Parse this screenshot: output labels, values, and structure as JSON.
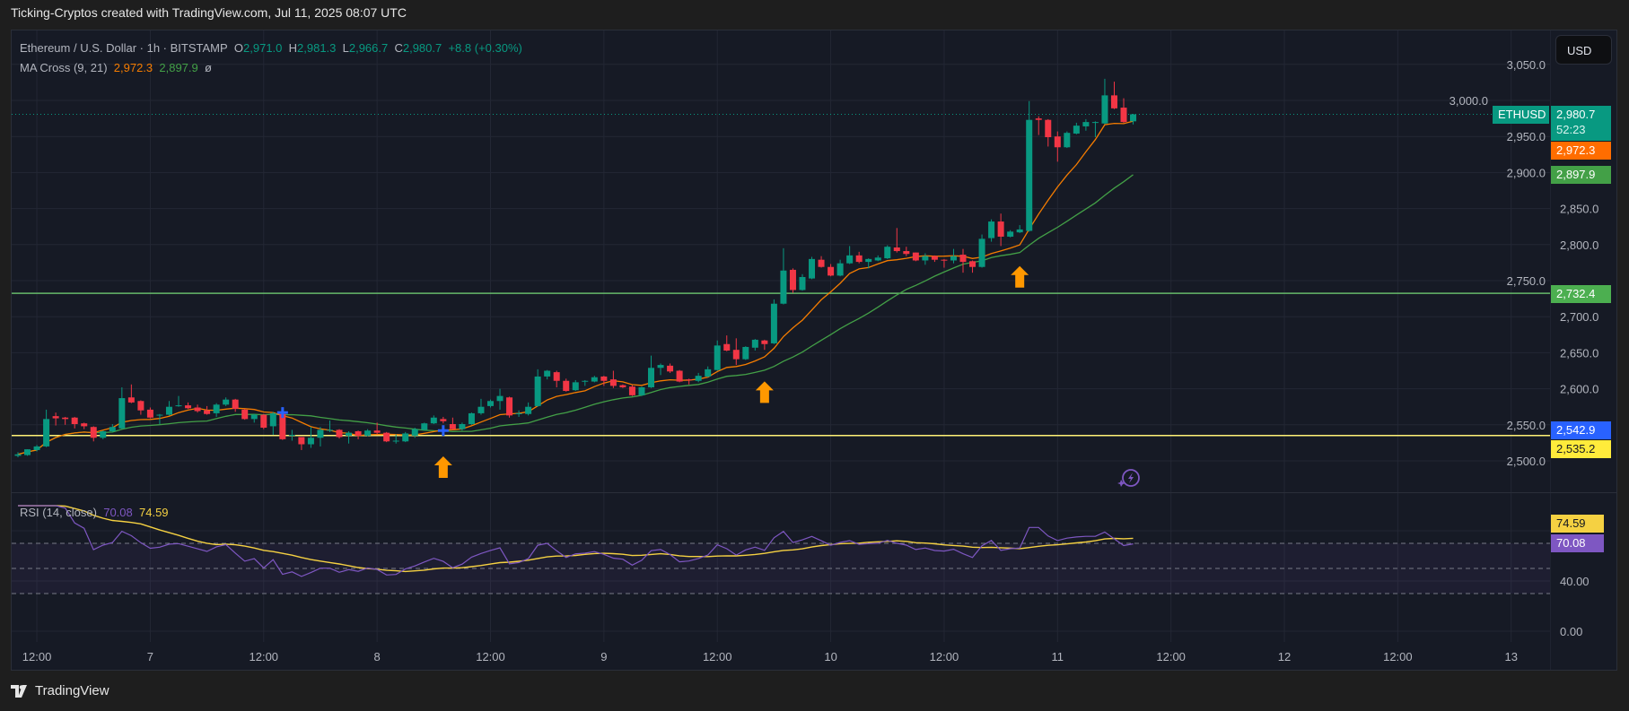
{
  "caption": "Ticking-Cryptos created with TradingView.com, Jul 11, 2025 08:07 UTC",
  "legend": {
    "symbol": "Ethereum / U.S. Dollar · 1h · BITSTAMP",
    "o_label": "O",
    "o": "2,971.0",
    "h_label": "H",
    "h": "2,981.3",
    "l_label": "L",
    "l": "2,966.7",
    "c_label": "C",
    "c": "2,980.7",
    "change": "+8.8 (+0.30%)",
    "ma_name": "MA Cross (9, 21)",
    "ma_fast": "2,972.3",
    "ma_slow": "2,897.9",
    "ma_extra": "ø",
    "rsi_name": "RSI (14, close)",
    "rsi_value": "70.08",
    "rsi_ma": "74.59"
  },
  "currency_button": "USD",
  "price_tags": {
    "symbol_tag": "ETHUSD",
    "last_price": "2,980.7",
    "countdown": "52:23",
    "ma_fast": "2,972.3",
    "ma_slow": "2,897.9",
    "resistance": "2,732.4",
    "blue_level": "2,542.9",
    "support": "2,535.2",
    "rsi_ma": "74.59",
    "rsi": "70.08"
  },
  "colors": {
    "up": "#089981",
    "down": "#f23645",
    "ma_fast": "#f57c00",
    "ma_slow": "#43a047",
    "rsi": "#7e57c2",
    "rsi_ma": "#f5d142",
    "resistance_line": "#66bb6a",
    "support_line": "#fff176",
    "marker_blue": "#2962ff",
    "arrow": "#ff9800",
    "background": "#161a25",
    "grid": "#232734"
  },
  "logo_text": "TradingView",
  "chart_data": {
    "type": "candlestick",
    "symbol": "ETHUSD",
    "interval": "1h",
    "price_axis": {
      "ticks": [
        2500,
        2550,
        2600,
        2650,
        2700,
        2750,
        2800,
        2850,
        2900,
        2950,
        3000,
        3050
      ],
      "range": [
        2480,
        3100
      ]
    },
    "rsi_axis": {
      "ticks": [
        "40.00",
        "0.00"
      ],
      "bands": [
        70,
        50,
        30
      ],
      "range": [
        0,
        100
      ]
    },
    "time_axis": [
      {
        "label": "12:00",
        "time": "2025-07-06T12:00"
      },
      {
        "label": "7",
        "time": "2025-07-07T00:00"
      },
      {
        "label": "12:00",
        "time": "2025-07-07T12:00"
      },
      {
        "label": "8",
        "time": "2025-07-08T00:00"
      },
      {
        "label": "12:00",
        "time": "2025-07-08T12:00"
      },
      {
        "label": "9",
        "time": "2025-07-09T00:00"
      },
      {
        "label": "12:00",
        "time": "2025-07-09T12:00"
      },
      {
        "label": "10",
        "time": "2025-07-10T00:00"
      },
      {
        "label": "12:00",
        "time": "2025-07-10T12:00"
      },
      {
        "label": "11",
        "time": "2025-07-11T00:00"
      },
      {
        "label": "12:00",
        "time": "2025-07-11T12:00"
      },
      {
        "label": "12",
        "time": "2025-07-12T00:00"
      },
      {
        "label": "12:00",
        "time": "2025-07-12T12:00"
      },
      {
        "label": "13",
        "time": "2025-07-13T00:00"
      }
    ],
    "horizontal_lines": [
      {
        "price": 2732.4,
        "color": "#66bb6a"
      },
      {
        "price": 2535.2,
        "color": "#fff176"
      }
    ],
    "last_price": 2980.7,
    "markers": [
      {
        "type": "cross",
        "time": "2025-07-07T14:00",
        "price": 2567,
        "color": "#2962ff"
      },
      {
        "type": "cross",
        "time": "2025-07-08T07:00",
        "price": 2542,
        "color": "#2962ff"
      },
      {
        "type": "arrow-up",
        "time": "2025-07-08T07:00",
        "price": 2490,
        "color": "#ff9800"
      },
      {
        "type": "arrow-up",
        "time": "2025-07-09T17:00",
        "price": 2594,
        "color": "#ff9800"
      },
      {
        "type": "arrow-up",
        "time": "2025-07-10T20:00",
        "price": 2754,
        "color": "#ff9800"
      }
    ],
    "candles_columns": [
      "time",
      "open",
      "high",
      "low",
      "close"
    ],
    "candles": [
      [
        "2025-07-06T10:00",
        2507,
        2512,
        2505,
        2509
      ],
      [
        "2025-07-06T11:00",
        2508,
        2516,
        2507,
        2516
      ],
      [
        "2025-07-06T12:00",
        2515,
        2522,
        2513,
        2520
      ],
      [
        "2025-07-06T13:00",
        2520,
        2571,
        2519,
        2558
      ],
      [
        "2025-07-06T14:00",
        2562,
        2567,
        2549,
        2559
      ],
      [
        "2025-07-06T15:00",
        2560,
        2561,
        2550,
        2558
      ],
      [
        "2025-07-06T16:00",
        2560,
        2561,
        2545,
        2551
      ],
      [
        "2025-07-06T17:00",
        2552,
        2553,
        2544,
        2548
      ],
      [
        "2025-07-06T18:00",
        2547,
        2548,
        2527,
        2532
      ],
      [
        "2025-07-06T19:00",
        2532,
        2542,
        2530,
        2541
      ],
      [
        "2025-07-06T20:00",
        2541,
        2551,
        2540,
        2547
      ],
      [
        "2025-07-06T21:00",
        2545,
        2602,
        2544,
        2587
      ],
      [
        "2025-07-06T22:00",
        2588,
        2606,
        2580,
        2581
      ],
      [
        "2025-07-06T23:00",
        2583,
        2584,
        2564,
        2570
      ],
      [
        "2025-07-07T00:00",
        2571,
        2574,
        2559,
        2560
      ],
      [
        "2025-07-07T01:00",
        2563,
        2565,
        2551,
        2564
      ],
      [
        "2025-07-07T02:00",
        2564,
        2583,
        2563,
        2575
      ],
      [
        "2025-07-07T03:00",
        2576,
        2590,
        2575,
        2577
      ],
      [
        "2025-07-07T04:00",
        2577,
        2581,
        2572,
        2573
      ],
      [
        "2025-07-07T05:00",
        2574,
        2578,
        2567,
        2569
      ],
      [
        "2025-07-07T06:00",
        2570,
        2576,
        2564,
        2565
      ],
      [
        "2025-07-07T07:00",
        2566,
        2580,
        2561,
        2578
      ],
      [
        "2025-07-07T08:00",
        2578,
        2588,
        2576,
        2585
      ],
      [
        "2025-07-07T09:00",
        2585,
        2586,
        2568,
        2572
      ],
      [
        "2025-07-07T10:00",
        2571,
        2572,
        2557,
        2558
      ],
      [
        "2025-07-07T11:00",
        2558,
        2565,
        2553,
        2564
      ],
      [
        "2025-07-07T12:00",
        2564,
        2565,
        2544,
        2546
      ],
      [
        "2025-07-07T13:00",
        2548,
        2568,
        2536,
        2566
      ],
      [
        "2025-07-07T14:00",
        2565,
        2571,
        2529,
        2530
      ],
      [
        "2025-07-07T15:00",
        2535,
        2543,
        2528,
        2536
      ],
      [
        "2025-07-07T16:00",
        2533,
        2533,
        2515,
        2523
      ],
      [
        "2025-07-07T17:00",
        2523,
        2547,
        2518,
        2532
      ],
      [
        "2025-07-07T18:00",
        2532,
        2547,
        2520,
        2543
      ],
      [
        "2025-07-07T19:00",
        2542,
        2556,
        2540,
        2543
      ],
      [
        "2025-07-07T20:00",
        2543,
        2544,
        2531,
        2533
      ],
      [
        "2025-07-07T21:00",
        2535,
        2541,
        2524,
        2539
      ],
      [
        "2025-07-07T22:00",
        2541,
        2542,
        2530,
        2535
      ],
      [
        "2025-07-07T23:00",
        2535,
        2544,
        2534,
        2542
      ],
      [
        "2025-07-08T00:00",
        2542,
        2553,
        2537,
        2539
      ],
      [
        "2025-07-08T01:00",
        2539,
        2540,
        2526,
        2527
      ],
      [
        "2025-07-08T02:00",
        2527,
        2537,
        2524,
        2528
      ],
      [
        "2025-07-08T03:00",
        2527,
        2540,
        2526,
        2538
      ],
      [
        "2025-07-08T04:00",
        2535,
        2546,
        2532,
        2544
      ],
      [
        "2025-07-08T05:00",
        2543,
        2553,
        2542,
        2552
      ],
      [
        "2025-07-08T06:00",
        2552,
        2563,
        2551,
        2560
      ],
      [
        "2025-07-08T07:00",
        2558,
        2561,
        2552,
        2555
      ],
      [
        "2025-07-08T08:00",
        2551,
        2560,
        2543,
        2544
      ],
      [
        "2025-07-08T09:00",
        2544,
        2553,
        2542,
        2551
      ],
      [
        "2025-07-08T10:00",
        2551,
        2567,
        2550,
        2566
      ],
      [
        "2025-07-08T11:00",
        2566,
        2586,
        2564,
        2575
      ],
      [
        "2025-07-08T12:00",
        2576,
        2585,
        2574,
        2583
      ],
      [
        "2025-07-08T13:00",
        2583,
        2600,
        2571,
        2590
      ],
      [
        "2025-07-08T14:00",
        2588,
        2589,
        2560,
        2563
      ],
      [
        "2025-07-08T15:00",
        2565,
        2570,
        2561,
        2566
      ],
      [
        "2025-07-08T16:00",
        2565,
        2581,
        2563,
        2575
      ],
      [
        "2025-07-08T17:00",
        2576,
        2627,
        2575,
        2617
      ],
      [
        "2025-07-08T18:00",
        2617,
        2626,
        2613,
        2625
      ],
      [
        "2025-07-08T19:00",
        2623,
        2625,
        2602,
        2611
      ],
      [
        "2025-07-08T20:00",
        2611,
        2614,
        2596,
        2597
      ],
      [
        "2025-07-08T21:00",
        2598,
        2612,
        2597,
        2609
      ],
      [
        "2025-07-08T22:00",
        2610,
        2612,
        2604,
        2611
      ],
      [
        "2025-07-08T23:00",
        2610,
        2618,
        2609,
        2616
      ],
      [
        "2025-07-09T00:00",
        2617,
        2618,
        2604,
        2611
      ],
      [
        "2025-07-09T01:00",
        2613,
        2625,
        2601,
        2604
      ],
      [
        "2025-07-09T02:00",
        2605,
        2606,
        2601,
        2602
      ],
      [
        "2025-07-09T03:00",
        2603,
        2605,
        2590,
        2591
      ],
      [
        "2025-07-09T04:00",
        2591,
        2603,
        2590,
        2602
      ],
      [
        "2025-07-09T05:00",
        2602,
        2646,
        2601,
        2629
      ],
      [
        "2025-07-09T06:00",
        2629,
        2635,
        2619,
        2633
      ],
      [
        "2025-07-09T07:00",
        2632,
        2635,
        2622,
        2624
      ],
      [
        "2025-07-09T08:00",
        2625,
        2626,
        2609,
        2610
      ],
      [
        "2025-07-09T09:00",
        2613,
        2614,
        2606,
        2612
      ],
      [
        "2025-07-09T10:00",
        2611,
        2622,
        2609,
        2618
      ],
      [
        "2025-07-09T11:00",
        2617,
        2631,
        2616,
        2627
      ],
      [
        "2025-07-09T12:00",
        2626,
        2667,
        2625,
        2660
      ],
      [
        "2025-07-09T13:00",
        2662,
        2674,
        2652,
        2653
      ],
      [
        "2025-07-09T14:00",
        2654,
        2670,
        2633,
        2641
      ],
      [
        "2025-07-09T15:00",
        2641,
        2659,
        2640,
        2658
      ],
      [
        "2025-07-09T16:00",
        2657,
        2669,
        2653,
        2668
      ],
      [
        "2025-07-09T17:00",
        2667,
        2668,
        2654,
        2662
      ],
      [
        "2025-07-09T18:00",
        2663,
        2724,
        2662,
        2718
      ],
      [
        "2025-07-09T19:00",
        2718,
        2795,
        2717,
        2764
      ],
      [
        "2025-07-09T20:00",
        2765,
        2767,
        2733,
        2737
      ],
      [
        "2025-07-09T21:00",
        2737,
        2759,
        2736,
        2755
      ],
      [
        "2025-07-09T22:00",
        2753,
        2783,
        2752,
        2780
      ],
      [
        "2025-07-09T23:00",
        2779,
        2784,
        2768,
        2769
      ],
      [
        "2025-07-10T00:00",
        2769,
        2773,
        2756,
        2757
      ],
      [
        "2025-07-10T01:00",
        2757,
        2779,
        2756,
        2774
      ],
      [
        "2025-07-10T02:00",
        2774,
        2798,
        2773,
        2785
      ],
      [
        "2025-07-10T03:00",
        2785,
        2790,
        2774,
        2776
      ],
      [
        "2025-07-10T04:00",
        2776,
        2781,
        2767,
        2780
      ],
      [
        "2025-07-10T05:00",
        2778,
        2785,
        2777,
        2782
      ],
      [
        "2025-07-10T06:00",
        2781,
        2799,
        2780,
        2797
      ],
      [
        "2025-07-10T07:00",
        2796,
        2823,
        2789,
        2791
      ],
      [
        "2025-07-10T08:00",
        2791,
        2797,
        2784,
        2787
      ],
      [
        "2025-07-10T09:00",
        2789,
        2789,
        2777,
        2778
      ],
      [
        "2025-07-10T10:00",
        2778,
        2788,
        2772,
        2784
      ],
      [
        "2025-07-10T11:00",
        2784,
        2785,
        2776,
        2779
      ],
      [
        "2025-07-10T12:00",
        2779,
        2780,
        2768,
        2778
      ],
      [
        "2025-07-10T13:00",
        2778,
        2794,
        2774,
        2784
      ],
      [
        "2025-07-10T14:00",
        2786,
        2794,
        2761,
        2776
      ],
      [
        "2025-07-10T15:00",
        2777,
        2778,
        2761,
        2769
      ],
      [
        "2025-07-10T16:00",
        2769,
        2814,
        2768,
        2808
      ],
      [
        "2025-07-10T17:00",
        2809,
        2835,
        2804,
        2832
      ],
      [
        "2025-07-10T18:00",
        2832,
        2843,
        2798,
        2811
      ],
      [
        "2025-07-10T19:00",
        2811,
        2820,
        2810,
        2818
      ],
      [
        "2025-07-10T20:00",
        2817,
        2827,
        2816,
        2821
      ],
      [
        "2025-07-10T21:00",
        2819,
        2999,
        2818,
        2973
      ],
      [
        "2025-07-10T22:00",
        2975,
        2978,
        2952,
        2973
      ],
      [
        "2025-07-10T23:00",
        2973,
        2974,
        2936,
        2949
      ],
      [
        "2025-07-11T00:00",
        2950,
        2957,
        2915,
        2935
      ],
      [
        "2025-07-11T01:00",
        2935,
        2957,
        2934,
        2955
      ],
      [
        "2025-07-11T02:00",
        2954,
        2969,
        2953,
        2965
      ],
      [
        "2025-07-11T03:00",
        2964,
        2974,
        2958,
        2970
      ],
      [
        "2025-07-11T04:00",
        2969,
        2971,
        2949,
        2970
      ],
      [
        "2025-07-11T05:00",
        2968,
        3030,
        2967,
        3007
      ],
      [
        "2025-07-11T06:00",
        3007,
        3026,
        2988,
        2989
      ],
      [
        "2025-07-11T07:00",
        2990,
        3003,
        2969,
        2970
      ],
      [
        "2025-07-11T08:00",
        2971.0,
        2981.3,
        2966.7,
        2980.7
      ]
    ]
  }
}
